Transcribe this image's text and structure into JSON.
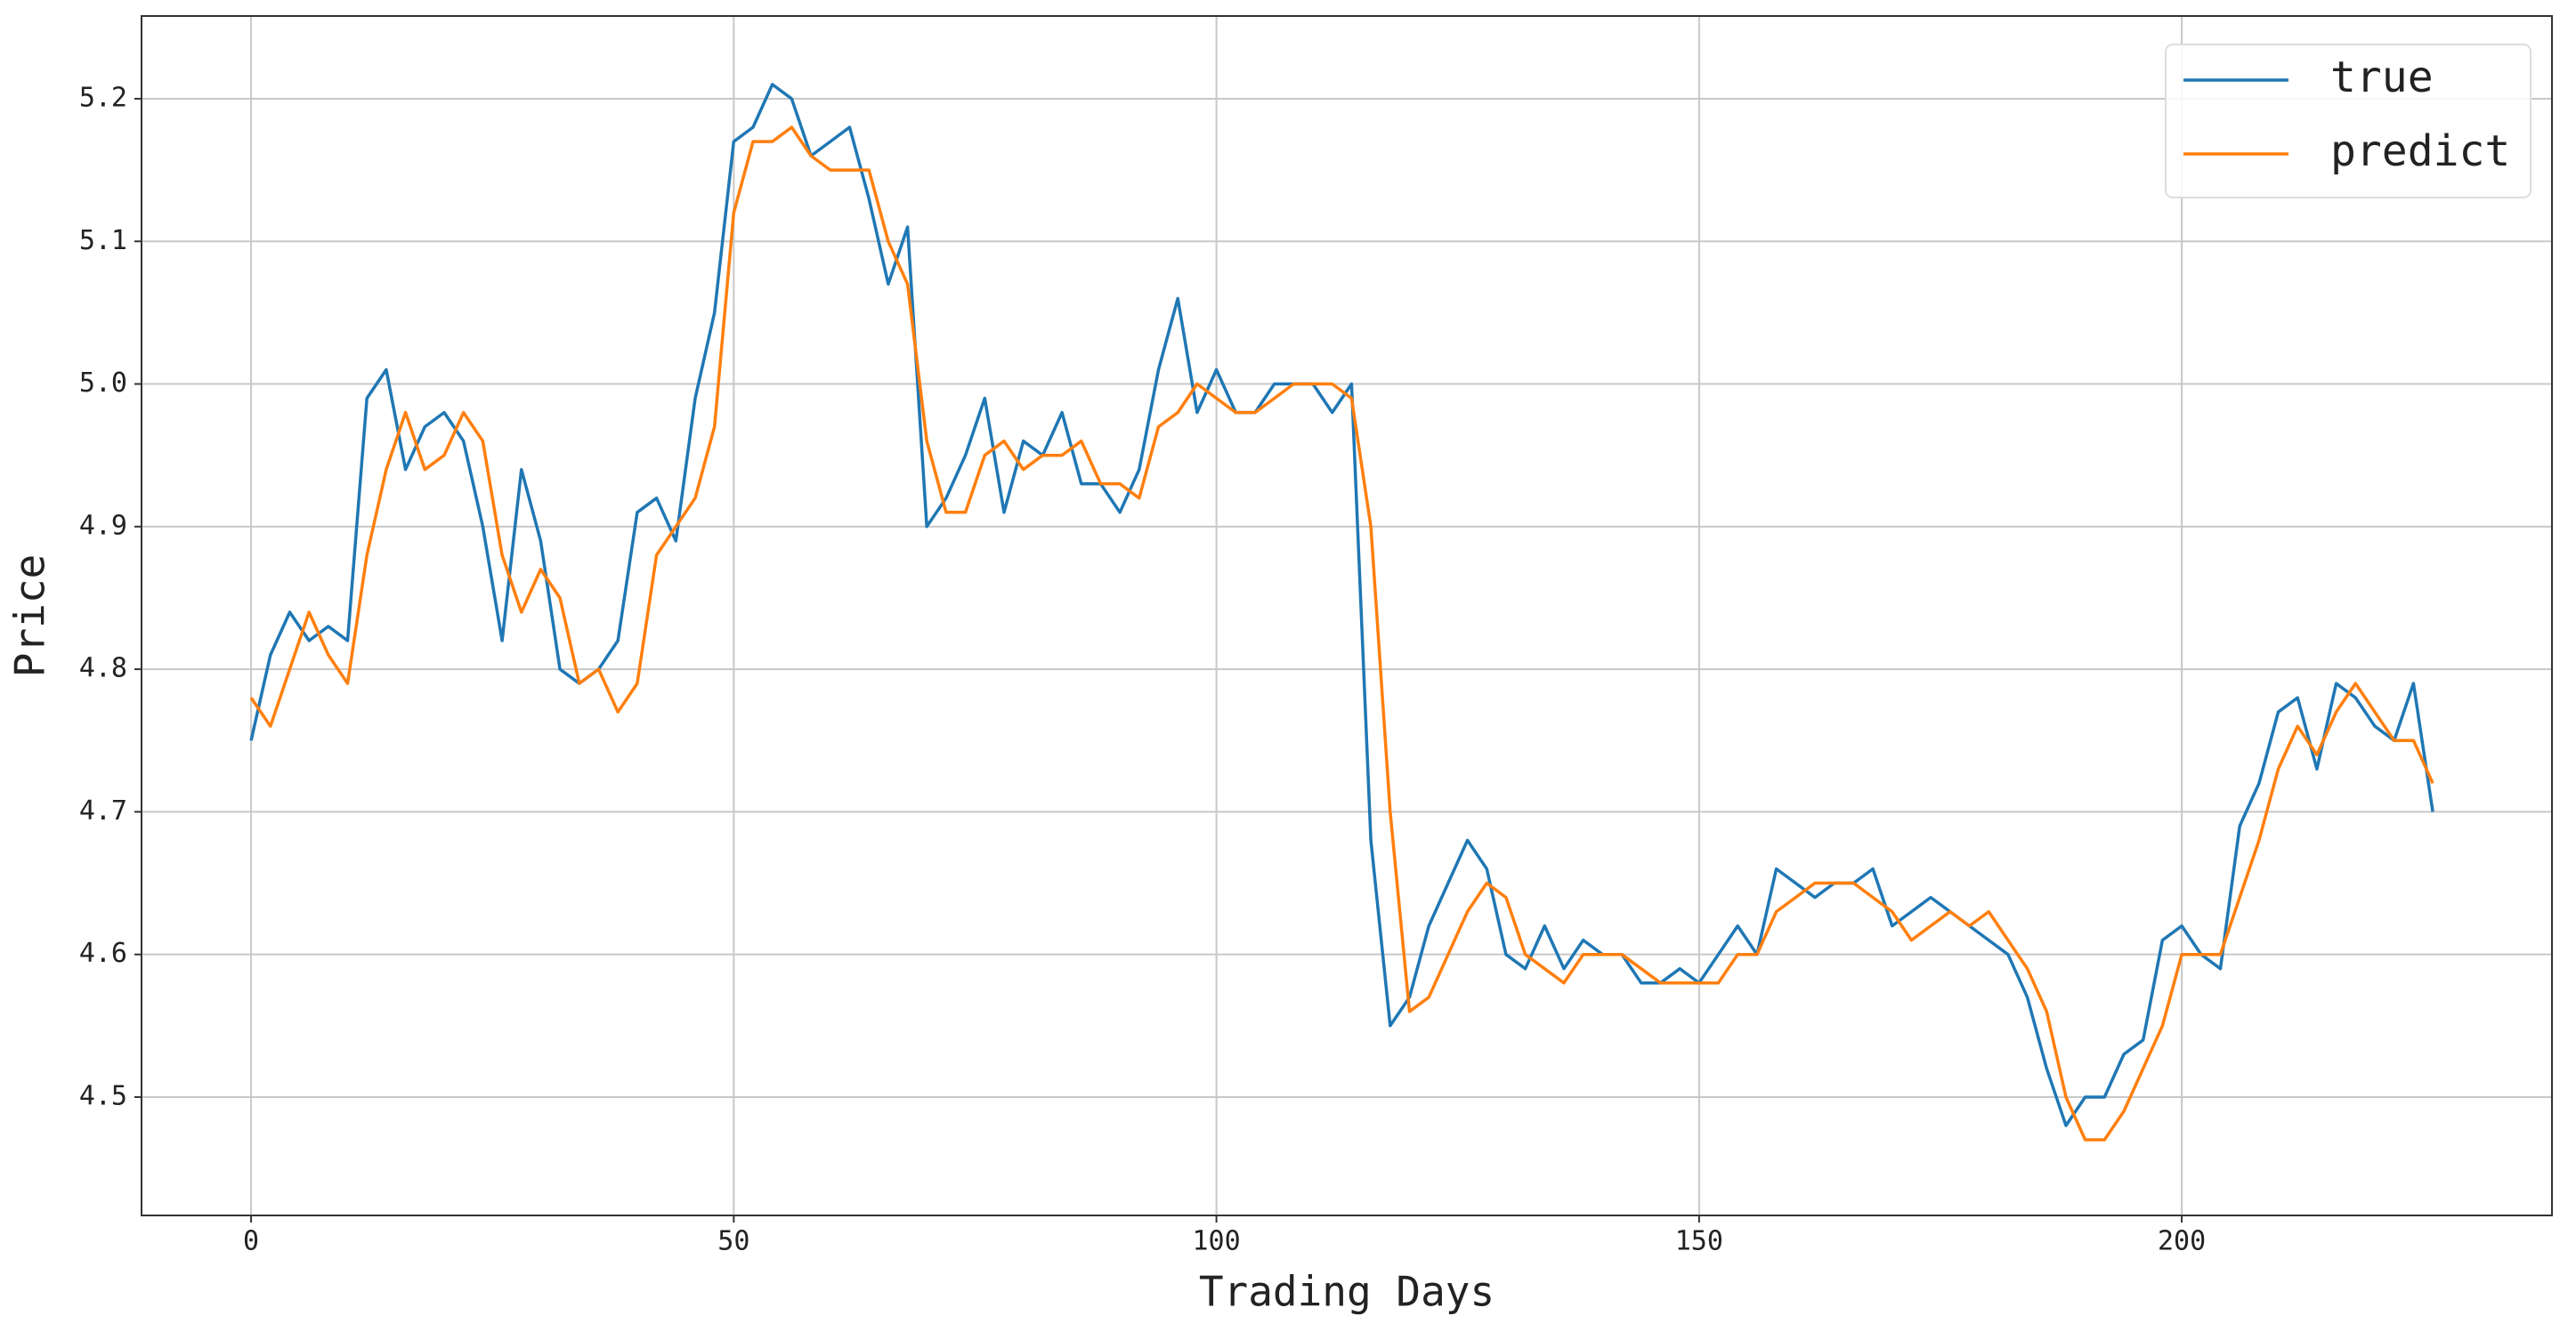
{
  "chart_data": {
    "type": "line",
    "xlabel": "Trading Days",
    "ylabel": "Price",
    "x": [
      0,
      2,
      4,
      6,
      8,
      10,
      12,
      14,
      16,
      18,
      20,
      22,
      24,
      26,
      28,
      30,
      32,
      34,
      36,
      38,
      40,
      42,
      44,
      46,
      48,
      50,
      52,
      54,
      56,
      58,
      60,
      62,
      64,
      66,
      68,
      70,
      72,
      74,
      76,
      78,
      80,
      82,
      84,
      86,
      88,
      90,
      92,
      94,
      96,
      98,
      100,
      102,
      104,
      106,
      108,
      110,
      112,
      114,
      116,
      118,
      120,
      122,
      124,
      126,
      128,
      130,
      132,
      134,
      136,
      138,
      140,
      142,
      144,
      146,
      148,
      150,
      152,
      154,
      156,
      158,
      160,
      162,
      164,
      166,
      168,
      170,
      172,
      174,
      176,
      178,
      180,
      182,
      184,
      186,
      188,
      190,
      192,
      194,
      196,
      198,
      200,
      202,
      204,
      206,
      208,
      210,
      212,
      214,
      216,
      218,
      220,
      222,
      224,
      226
    ],
    "series": [
      {
        "name": "true",
        "color": "#1f77b4",
        "values": [
          4.75,
          4.81,
          4.84,
          4.82,
          4.83,
          4.82,
          4.99,
          5.01,
          4.94,
          4.97,
          4.98,
          4.96,
          4.9,
          4.82,
          4.94,
          4.89,
          4.8,
          4.79,
          4.8,
          4.82,
          4.91,
          4.92,
          4.89,
          4.99,
          5.05,
          5.17,
          5.18,
          5.21,
          5.2,
          5.16,
          5.17,
          5.18,
          5.13,
          5.07,
          5.11,
          4.9,
          4.92,
          4.95,
          4.99,
          4.91,
          4.96,
          4.95,
          4.98,
          4.93,
          4.93,
          4.91,
          4.94,
          5.01,
          5.06,
          4.98,
          5.01,
          4.98,
          4.98,
          5.0,
          5.0,
          5.0,
          4.98,
          5.0,
          4.68,
          4.55,
          4.57,
          4.62,
          4.65,
          4.68,
          4.66,
          4.6,
          4.59,
          4.62,
          4.59,
          4.61,
          4.6,
          4.6,
          4.58,
          4.58,
          4.59,
          4.58,
          4.6,
          4.62,
          4.6,
          4.66,
          4.65,
          4.64,
          4.65,
          4.65,
          4.66,
          4.62,
          4.63,
          4.64,
          4.63,
          4.62,
          4.61,
          4.6,
          4.57,
          4.52,
          4.48,
          4.5,
          4.5,
          4.53,
          4.54,
          4.61,
          4.62,
          4.6,
          4.59,
          4.69,
          4.72,
          4.77,
          4.78,
          4.73,
          4.79,
          4.78,
          4.76,
          4.75,
          4.79,
          4.7
        ]
      },
      {
        "name": "predict",
        "color": "#ff7f0e",
        "values": [
          4.78,
          4.76,
          4.8,
          4.84,
          4.81,
          4.79,
          4.88,
          4.94,
          4.98,
          4.94,
          4.95,
          4.98,
          4.96,
          4.88,
          4.84,
          4.87,
          4.85,
          4.79,
          4.8,
          4.77,
          4.79,
          4.88,
          4.9,
          4.92,
          4.97,
          5.12,
          5.17,
          5.17,
          5.18,
          5.16,
          5.15,
          5.15,
          5.15,
          5.1,
          5.07,
          4.96,
          4.91,
          4.91,
          4.95,
          4.96,
          4.94,
          4.95,
          4.95,
          4.96,
          4.93,
          4.93,
          4.92,
          4.97,
          4.98,
          5.0,
          4.99,
          4.98,
          4.98,
          4.99,
          5.0,
          5.0,
          5.0,
          4.99,
          4.9,
          4.7,
          4.56,
          4.57,
          4.6,
          4.63,
          4.65,
          4.64,
          4.6,
          4.59,
          4.58,
          4.6,
          4.6,
          4.6,
          4.59,
          4.58,
          4.58,
          4.58,
          4.58,
          4.6,
          4.6,
          4.63,
          4.64,
          4.65,
          4.65,
          4.65,
          4.64,
          4.63,
          4.61,
          4.62,
          4.63,
          4.62,
          4.63,
          4.61,
          4.59,
          4.56,
          4.5,
          4.47,
          4.47,
          4.49,
          4.52,
          4.55,
          4.6,
          4.6,
          4.6,
          4.64,
          4.68,
          4.73,
          4.76,
          4.74,
          4.77,
          4.79,
          4.77,
          4.75,
          4.75,
          4.72
        ]
      }
    ],
    "xlim": [
      -11.35,
      238.35
    ],
    "xticks": [
      0,
      50,
      100,
      150,
      200
    ],
    "ylim": [
      4.417,
      5.258
    ],
    "yticks": [
      4.5,
      4.6,
      4.7,
      4.8,
      4.9,
      {
        "value": 5,
        "label": "5.0"
      },
      5.1,
      5.2
    ],
    "grid": true,
    "legend": "upper right"
  }
}
